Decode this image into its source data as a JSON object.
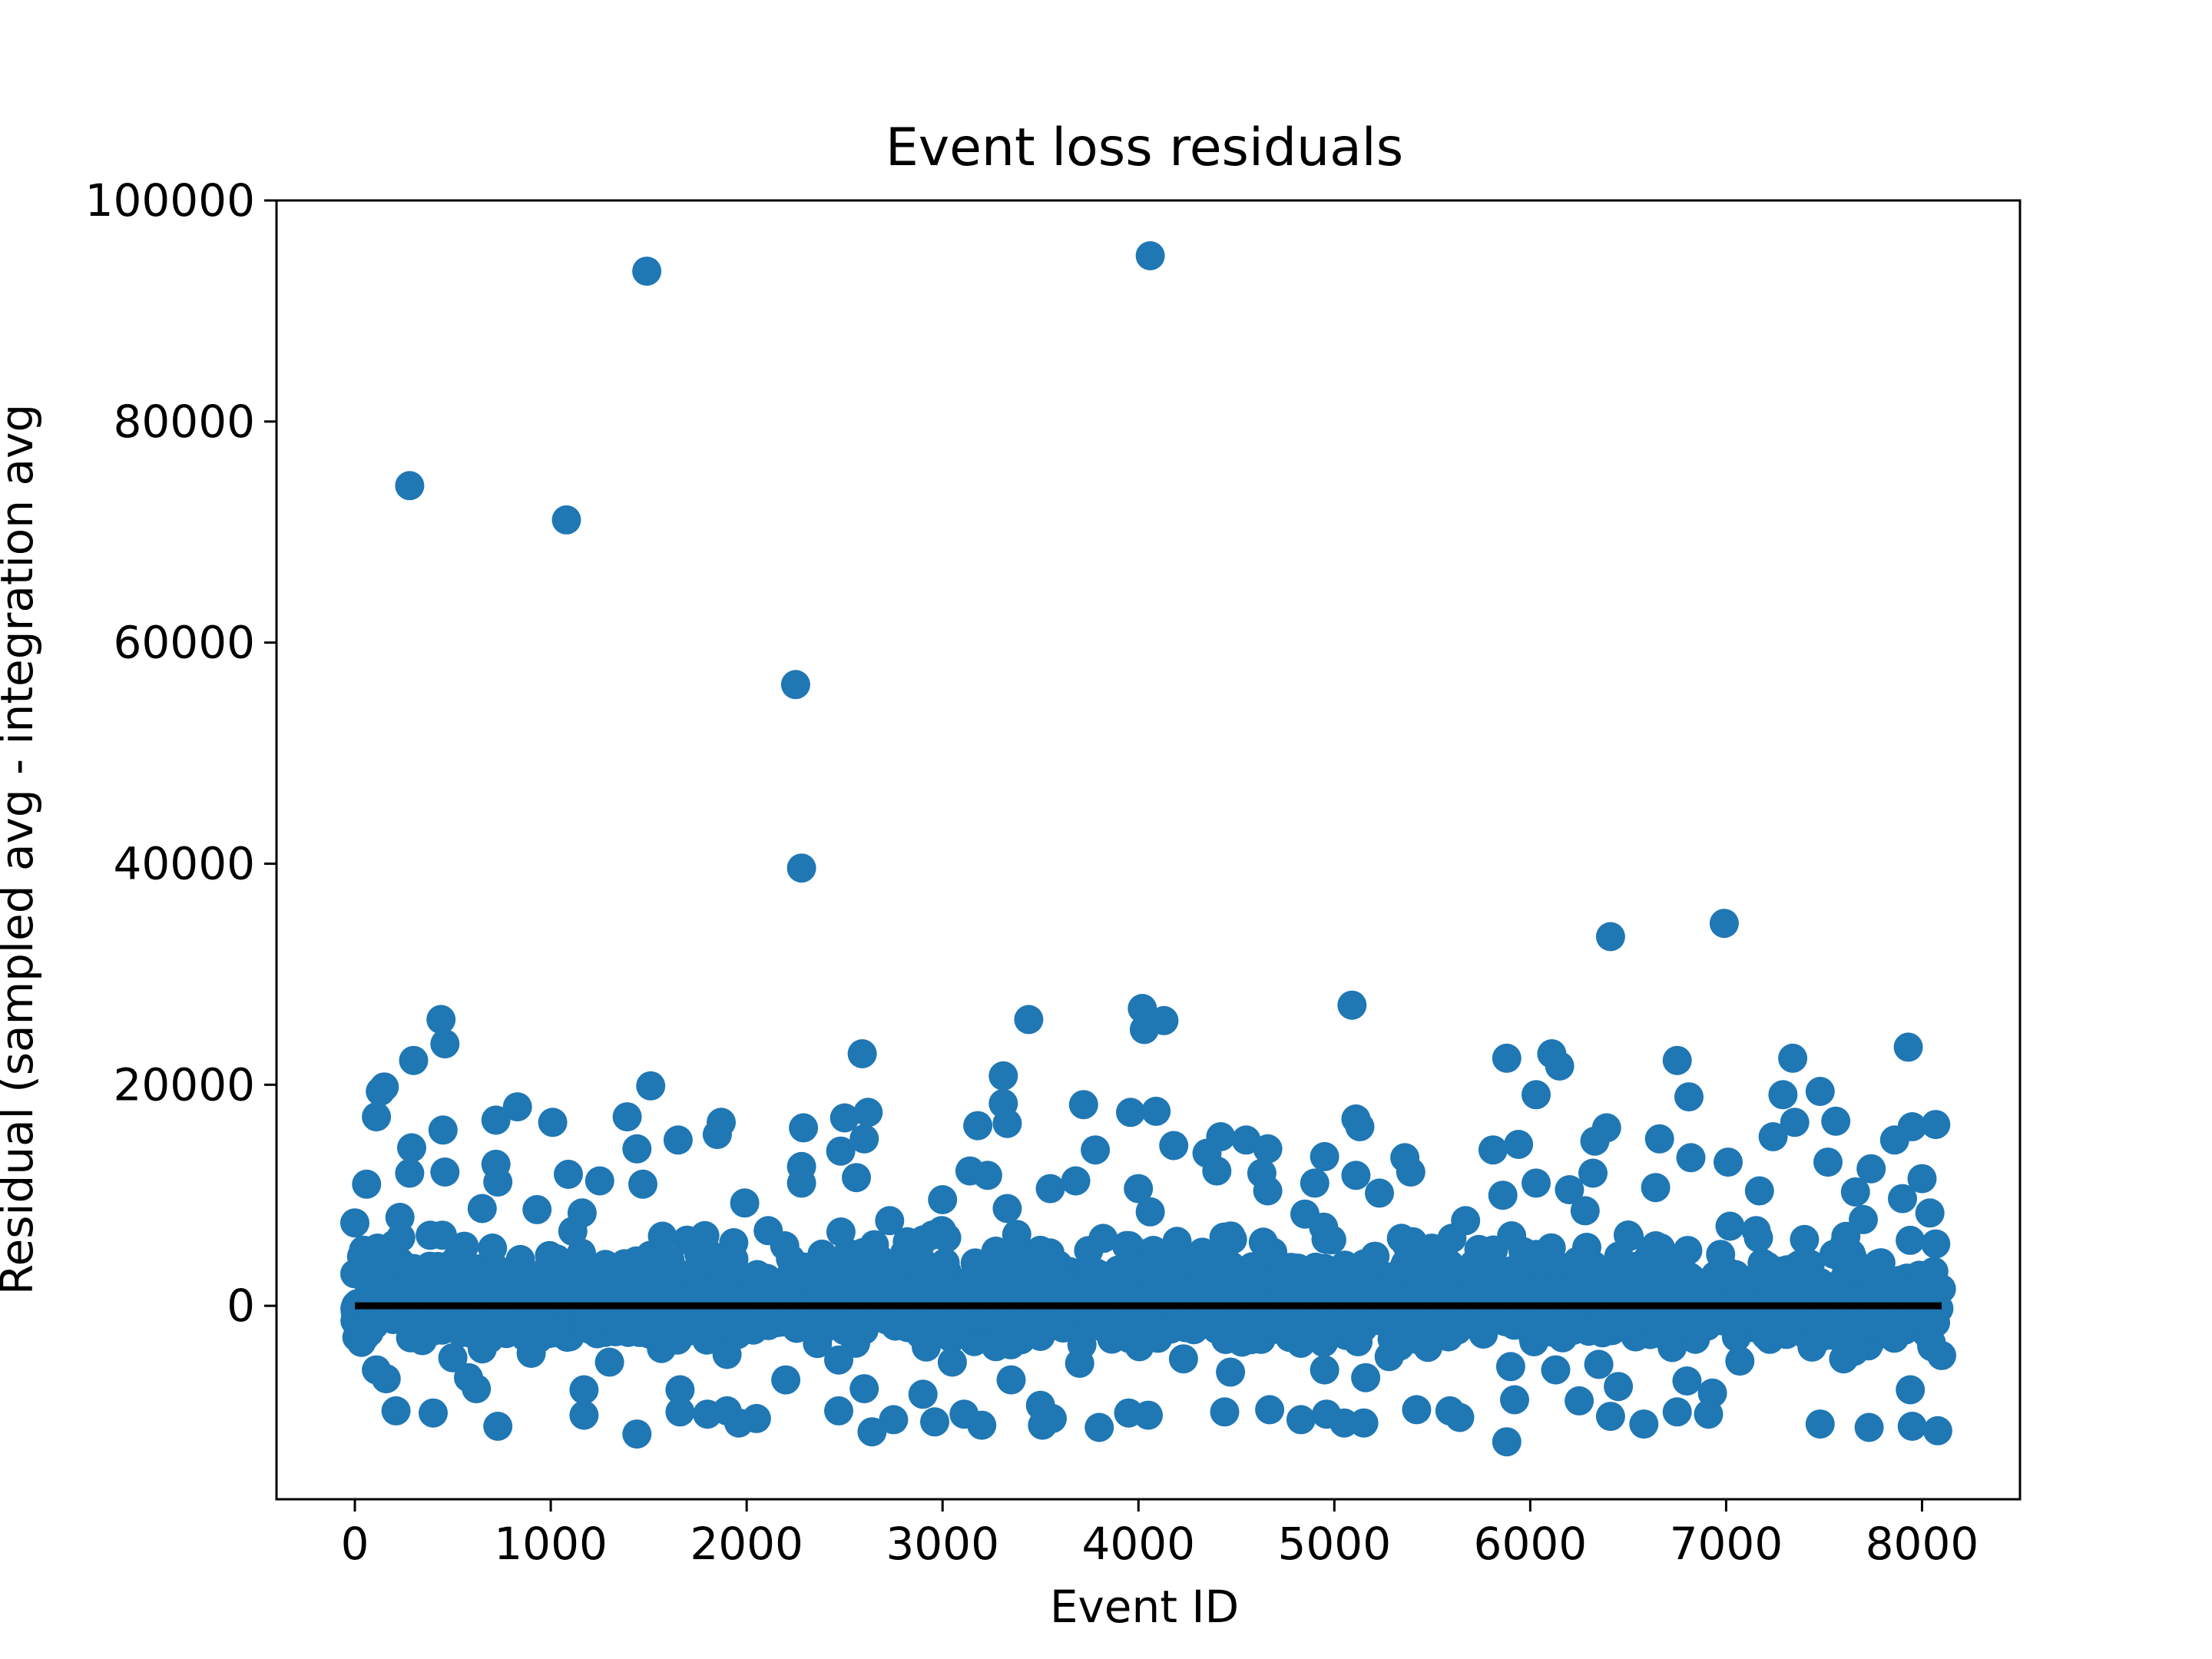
{
  "chart_data": {
    "type": "scatter",
    "title": "Event loss residuals",
    "xlabel": "Event ID",
    "ylabel": "Residual (sampled avg - integration avg",
    "xlim": [
      -400,
      8500
    ],
    "ylim": [
      -17500,
      100000
    ],
    "xticks": [
      0,
      1000,
      2000,
      3000,
      4000,
      5000,
      6000,
      7000,
      8000
    ],
    "yticks": [
      0,
      20000,
      40000,
      60000,
      80000,
      100000
    ],
    "xtick_labels": [
      "0",
      "1000",
      "2000",
      "3000",
      "4000",
      "5000",
      "6000",
      "7000",
      "8000"
    ],
    "ytick_labels": [
      "0",
      "20000",
      "40000",
      "60000",
      "80000",
      "100000"
    ],
    "grid": false,
    "legend": "none",
    "marker_color": "#1f77b4",
    "reference_line": {
      "y": 0,
      "x_start": 0,
      "x_end": 8100,
      "color": "#000000"
    },
    "series": [
      {
        "points": [
          [
            280,
            74200
          ],
          [
            1080,
            71100
          ],
          [
            1490,
            93600
          ],
          [
            4060,
            95000
          ],
          [
            2250,
            56200
          ],
          [
            2280,
            39600
          ],
          [
            6410,
            33400
          ],
          [
            6990,
            34600
          ],
          [
            5090,
            27200
          ],
          [
            4020,
            26900
          ],
          [
            4030,
            25000
          ],
          [
            4130,
            25800
          ],
          [
            3440,
            25900
          ],
          [
            440,
            25900
          ],
          [
            460,
            23700
          ],
          [
            300,
            22200
          ],
          [
            6110,
            22800
          ],
          [
            6150,
            21700
          ],
          [
            5880,
            22400
          ],
          [
            6750,
            22200
          ],
          [
            7340,
            22400
          ],
          [
            7930,
            23400
          ],
          [
            2590,
            22800
          ],
          [
            3310,
            20800
          ],
          [
            1510,
            19900
          ],
          [
            130,
            19400
          ],
          [
            150,
            19800
          ],
          [
            6030,
            19100
          ],
          [
            6810,
            18900
          ],
          [
            7290,
            19100
          ],
          [
            7480,
            19400
          ],
          [
            3720,
            18200
          ],
          [
            3310,
            18300
          ],
          [
            3960,
            17500
          ],
          [
            4090,
            17600
          ],
          [
            830,
            18000
          ],
          [
            1010,
            16600
          ],
          [
            1390,
            17100
          ],
          [
            110,
            17100
          ],
          [
            720,
            16800
          ],
          [
            1870,
            16600
          ],
          [
            2620,
            17500
          ],
          [
            2500,
            17000
          ],
          [
            5110,
            16900
          ],
          [
            5130,
            16200
          ],
          [
            6390,
            16100
          ],
          [
            7350,
            16600
          ],
          [
            7560,
            16700
          ],
          [
            7950,
            16200
          ],
          [
            8070,
            16400
          ],
          [
            450,
            15900
          ],
          [
            3180,
            16300
          ],
          [
            3330,
            16500
          ],
          [
            2290,
            16100
          ],
          [
            1850,
            15500
          ],
          [
            1650,
            15000
          ],
          [
            2600,
            15100
          ],
          [
            4420,
            15300
          ],
          [
            4550,
            15000
          ],
          [
            6330,
            14900
          ],
          [
            6660,
            15100
          ],
          [
            7240,
            15300
          ],
          [
            7860,
            15000
          ],
          [
            290,
            14300
          ],
          [
            1440,
            14200
          ],
          [
            2480,
            14000
          ],
          [
            3780,
            14100
          ],
          [
            4180,
            14500
          ],
          [
            4350,
            13800
          ],
          [
            4660,
            14200
          ],
          [
            4950,
            13500
          ],
          [
            5360,
            13400
          ],
          [
            5810,
            14100
          ],
          [
            5940,
            14600
          ],
          [
            6820,
            13400
          ],
          [
            7010,
            13000
          ],
          [
            7520,
            13000
          ],
          [
            8000,
            11500
          ],
          [
            280,
            12000
          ],
          [
            460,
            12100
          ],
          [
            720,
            12800
          ],
          [
            1090,
            11900
          ],
          [
            2280,
            12600
          ],
          [
            2560,
            11600
          ],
          [
            3140,
            12200
          ],
          [
            3230,
            11800
          ],
          [
            4400,
            12200
          ],
          [
            4630,
            12000
          ],
          [
            5110,
            11800
          ],
          [
            5390,
            12100
          ],
          [
            6320,
            12000
          ],
          [
            7740,
            12400
          ],
          [
            6030,
            11100
          ],
          [
            60,
            11000
          ],
          [
            730,
            11200
          ],
          [
            1250,
            11300
          ],
          [
            1470,
            11000
          ],
          [
            2280,
            11100
          ],
          [
            3000,
            9600
          ],
          [
            3550,
            10600
          ],
          [
            3680,
            11300
          ],
          [
            4000,
            10600
          ],
          [
            4660,
            10400
          ],
          [
            4900,
            11100
          ],
          [
            5230,
            10200
          ],
          [
            5860,
            10000
          ],
          [
            6200,
            10500
          ],
          [
            6640,
            10700
          ],
          [
            7170,
            10400
          ],
          [
            7660,
            10300
          ],
          [
            7900,
            9700
          ],
          [
            0,
            7500
          ],
          [
            230,
            8000
          ],
          [
            650,
            8800
          ],
          [
            930,
            8700
          ],
          [
            1160,
            8400
          ],
          [
            1990,
            9300
          ],
          [
            2730,
            7700
          ],
          [
            3330,
            8800
          ],
          [
            4060,
            8500
          ],
          [
            4850,
            8300
          ],
          [
            5670,
            7700
          ],
          [
            6280,
            8600
          ],
          [
            7020,
            7200
          ],
          [
            7700,
            7800
          ],
          [
            8040,
            8400
          ],
          [
            1570,
            6300
          ],
          [
            2110,
            6800
          ],
          [
            2950,
            6400
          ],
          [
            3820,
            6100
          ],
          [
            4480,
            6000
          ],
          [
            5400,
            5800
          ],
          [
            6500,
            6400
          ],
          [
            7400,
            6000
          ],
          [
            8070,
            5600
          ],
          [
            0,
            2900
          ],
          [
            40,
            -2500
          ],
          [
            110,
            -5800
          ],
          [
            160,
            -6600
          ],
          [
            210,
            -9500
          ],
          [
            400,
            -9700
          ],
          [
            580,
            -6500
          ],
          [
            620,
            -7500
          ],
          [
            730,
            -10900
          ],
          [
            1170,
            -7600
          ],
          [
            1170,
            -9900
          ],
          [
            1440,
            -11600
          ],
          [
            1660,
            -7600
          ],
          [
            1660,
            -9600
          ],
          [
            1800,
            -9800
          ],
          [
            1900,
            -9500
          ],
          [
            1960,
            -10600
          ],
          [
            2050,
            -10200
          ],
          [
            2200,
            -6700
          ],
          [
            2470,
            -9500
          ],
          [
            2600,
            -7500
          ],
          [
            2640,
            -11400
          ],
          [
            2750,
            -10300
          ],
          [
            2900,
            -8000
          ],
          [
            2960,
            -10500
          ],
          [
            3110,
            -9800
          ],
          [
            3200,
            -10800
          ],
          [
            3350,
            -6700
          ],
          [
            3500,
            -9000
          ],
          [
            3510,
            -10800
          ],
          [
            3560,
            -10200
          ],
          [
            3800,
            -11000
          ],
          [
            3950,
            -9700
          ],
          [
            4050,
            -9900
          ],
          [
            4440,
            -9600
          ],
          [
            4470,
            -6000
          ],
          [
            4670,
            -9400
          ],
          [
            4830,
            -10300
          ],
          [
            4960,
            -9800
          ],
          [
            5050,
            -10600
          ],
          [
            5150,
            -10600
          ],
          [
            5160,
            -6500
          ],
          [
            5420,
            -9400
          ],
          [
            5590,
            -9500
          ],
          [
            5640,
            -10100
          ],
          [
            5880,
            -12300
          ],
          [
            5920,
            -8500
          ],
          [
            6130,
            -5800
          ],
          [
            6250,
            -8600
          ],
          [
            6410,
            -10000
          ],
          [
            6450,
            -7300
          ],
          [
            6580,
            -10700
          ],
          [
            6750,
            -9600
          ],
          [
            6800,
            -6800
          ],
          [
            6910,
            -9800
          ],
          [
            6930,
            -7900
          ],
          [
            7480,
            -10700
          ],
          [
            7730,
            -11000
          ],
          [
            7940,
            -7600
          ],
          [
            7950,
            -10900
          ],
          [
            8080,
            -11300
          ],
          [
            8100,
            -4500
          ],
          [
            5900,
            -5500
          ],
          [
            4950,
            -5800
          ],
          [
            3700,
            -5200
          ],
          [
            2470,
            -4900
          ],
          [
            1300,
            -5100
          ],
          [
            500,
            -4700
          ],
          [
            7600,
            -4800
          ],
          [
            7070,
            -5000
          ],
          [
            6350,
            -5300
          ],
          [
            5280,
            -4600
          ],
          [
            4230,
            -4800
          ],
          [
            3050,
            -5100
          ],
          [
            1900,
            -4400
          ],
          [
            900,
            -4300
          ],
          [
            8060,
            900
          ],
          [
            8060,
            -1500
          ],
          [
            8060,
            3100
          ],
          [
            8050,
            -3700
          ]
        ]
      }
    ]
  }
}
